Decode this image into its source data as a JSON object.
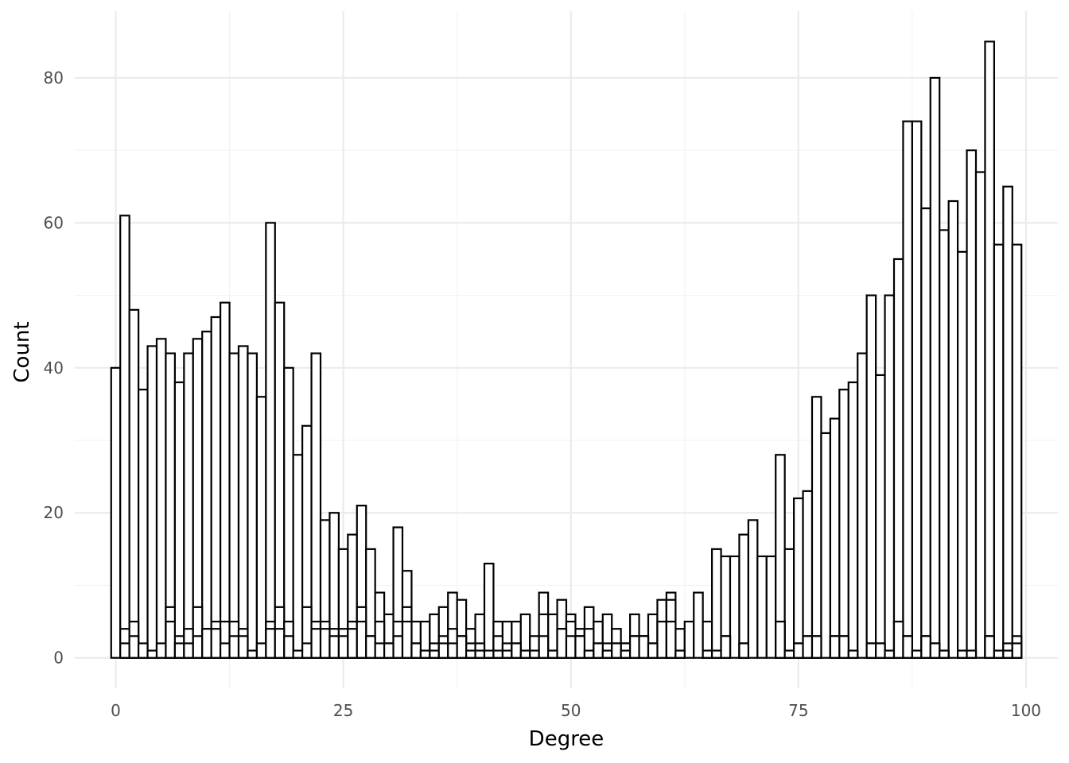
{
  "chart_data": {
    "type": "bar",
    "title": "",
    "xlabel": "Degree",
    "ylabel": "Count",
    "xlim": [
      -4.5,
      103.5
    ],
    "ylim": [
      -4.2,
      89.2
    ],
    "x_ticks": [
      0,
      25,
      50,
      75,
      100
    ],
    "x_tick_labels": [
      "0",
      "25",
      "50",
      "75",
      "100"
    ],
    "y_ticks": [
      0,
      20,
      40,
      60,
      80
    ],
    "y_tick_labels": [
      "0",
      "20",
      "40",
      "60",
      "80"
    ],
    "grid": true,
    "bin_width": 1,
    "bin_start": 0,
    "outer_values": [
      40,
      61,
      48,
      37,
      43,
      44,
      42,
      38,
      42,
      44,
      45,
      47,
      49,
      42,
      43,
      42,
      36,
      60,
      49,
      40,
      28,
      32,
      42,
      19,
      20,
      15,
      17,
      21,
      15,
      9,
      6,
      18,
      12,
      5,
      5,
      6,
      7,
      9,
      8,
      4,
      6,
      13,
      5,
      5,
      5,
      6,
      3,
      9,
      6,
      8,
      6,
      4,
      7,
      5,
      6,
      4,
      2,
      6,
      3,
      6,
      8,
      9,
      4,
      5,
      9,
      5,
      15,
      14,
      14,
      17,
      19,
      14,
      14,
      28,
      15,
      22,
      23,
      36,
      31,
      33,
      37,
      38,
      42,
      50,
      39,
      50,
      55,
      74,
      74,
      62,
      80,
      59,
      63,
      56,
      70,
      67,
      85,
      57,
      65,
      57
    ],
    "series": [
      {
        "name": "",
        "values": [
          40,
          61,
          48,
          37,
          43,
          44,
          42,
          38,
          42,
          44,
          45,
          47,
          49,
          42,
          43,
          42,
          36,
          60,
          49,
          40,
          28,
          32,
          42,
          19,
          20,
          15,
          17,
          21,
          15,
          9,
          6,
          18,
          12,
          5,
          5,
          6,
          7,
          9,
          8,
          4,
          6,
          13,
          5,
          5,
          5,
          6,
          3,
          9,
          6,
          8,
          6,
          4,
          7,
          5,
          6,
          4,
          2,
          6,
          3,
          6,
          8,
          9,
          4,
          5,
          9,
          5,
          15,
          14,
          14,
          17,
          19,
          14,
          14,
          28,
          15,
          22,
          23,
          36,
          31,
          33,
          37,
          38,
          42,
          50,
          39,
          50,
          55,
          74,
          74,
          62,
          80,
          59,
          63,
          56,
          70,
          67,
          85,
          57,
          65,
          57
        ]
      },
      {
        "name": "",
        "values": [
          0,
          4,
          5,
          0,
          0,
          0,
          7,
          3,
          4,
          7,
          4,
          5,
          5,
          5,
          4,
          0,
          0,
          5,
          7,
          5,
          0,
          7,
          5,
          5,
          4,
          4,
          5,
          7,
          3,
          5,
          2,
          5,
          7,
          2,
          1,
          2,
          3,
          4,
          3,
          2,
          2,
          1,
          3,
          2,
          2,
          1,
          1,
          6,
          1,
          4,
          5,
          3,
          4,
          2,
          2,
          2,
          2,
          3,
          3,
          2,
          5,
          8,
          1,
          0,
          0,
          1,
          1,
          3,
          0,
          2,
          0,
          0,
          0,
          5,
          1,
          2,
          3,
          3,
          0,
          3,
          3,
          1,
          0,
          2,
          2,
          1,
          5,
          3,
          1,
          3,
          2,
          1,
          0,
          1,
          1,
          0,
          3,
          1,
          2,
          3
        ]
      },
      {
        "name": "",
        "values": [
          0,
          2,
          3,
          2,
          1,
          2,
          5,
          2,
          2,
          3,
          4,
          4,
          2,
          3,
          3,
          1,
          2,
          4,
          4,
          3,
          1,
          2,
          4,
          4,
          3,
          3,
          4,
          5,
          3,
          2,
          2,
          3,
          5,
          2,
          1,
          1,
          2,
          2,
          3,
          1,
          1,
          1,
          1,
          1,
          2,
          1,
          1,
          3,
          1,
          4,
          3,
          3,
          1,
          2,
          1,
          2,
          1,
          3,
          3,
          2,
          0,
          5,
          1,
          0,
          0,
          1,
          1,
          3,
          0,
          2,
          0,
          0,
          0,
          5,
          1,
          2,
          3,
          3,
          0,
          3,
          3,
          1,
          0,
          2,
          2,
          1,
          5,
          3,
          1,
          3,
          2,
          1,
          0,
          1,
          1,
          0,
          3,
          1,
          1,
          2
        ]
      }
    ]
  }
}
